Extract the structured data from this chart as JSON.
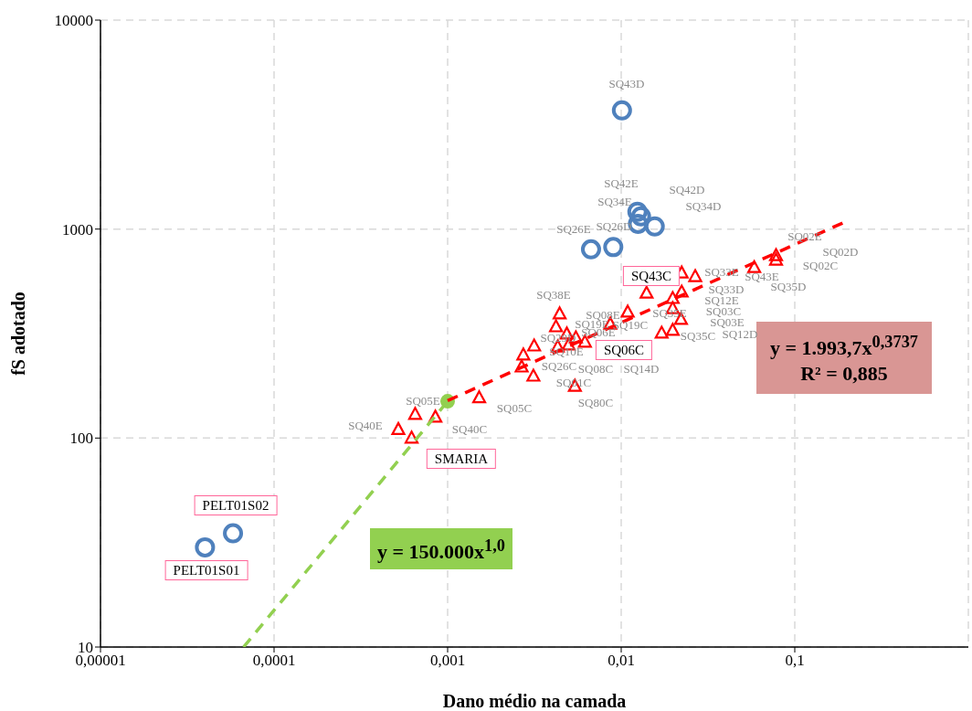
{
  "chart_data": {
    "type": "scatter",
    "xlabel": "Dano médio na camada",
    "ylabel": "fS adotado",
    "log": "xy",
    "grid": true,
    "xlim": [
      1e-05,
      1
    ],
    "ylim": [
      10,
      10000
    ],
    "xticks": [
      {
        "value": 1e-05,
        "label": "0,00001"
      },
      {
        "value": 0.0001,
        "label": "0,0001"
      },
      {
        "value": 0.001,
        "label": "0,001"
      },
      {
        "value": 0.01,
        "label": "0,01"
      },
      {
        "value": 0.1,
        "label": "0,1"
      }
    ],
    "yticks": [
      10,
      100,
      1000,
      10000
    ],
    "series": [
      {
        "type": "scatter",
        "marker": "circle",
        "color": "#4f81bd",
        "x": [
          4e-05,
          5.8e-05,
          0.0067,
          0.009,
          0.0124,
          0.0125,
          0.013,
          0.0156,
          0.0101
        ],
        "values": [
          30,
          35,
          800,
          820,
          1210,
          1060,
          1150,
          1030,
          3700
        ]
      },
      {
        "type": "scatter",
        "marker": "triangle",
        "color": "#ff0000",
        "x": [
          0.00052,
          0.00062,
          0.00065,
          0.00085,
          0.00152,
          0.00267,
          0.00312,
          0.00273,
          0.00315,
          0.00442,
          0.00421,
          0.00486,
          0.00431,
          0.00498,
          0.00548,
          0.00618,
          0.00865,
          0.00541,
          0.0109,
          0.014,
          0.0171,
          0.0198,
          0.0221,
          0.0198,
          0.0198,
          0.0223,
          0.0223,
          0.0267,
          0.0584,
          0.078,
          0.078
        ],
        "values": [
          110,
          100,
          130,
          126,
          156,
          219,
          198,
          250,
          276,
          393,
          341,
          315,
          273,
          279,
          302,
          288,
          351,
          177,
          401,
          494,
          318,
          328,
          370,
          417,
          466,
          500,
          617,
          593,
          655,
          747,
          711
        ]
      },
      {
        "type": "scatter",
        "marker": "circle",
        "color": "#92d050",
        "x": [
          0.001
        ],
        "values": [
          150
        ]
      },
      {
        "type": "line",
        "line_style": "dashed",
        "marker": "none",
        "color": "#ff0000",
        "x": [
          0.001,
          0.2
        ],
        "values": [
          151,
          1093
        ]
      },
      {
        "type": "line",
        "line_style": "dashed",
        "marker": "none",
        "color": "#92d050",
        "x": [
          6.67e-05,
          0.001
        ],
        "values": [
          10,
          150
        ]
      }
    ],
    "annotations": [
      "y = 1.993,7x$^{0,3737}$",
      "R² = 0,885",
      "y = 150.000x$^{1,0}$",
      "PELT01S02",
      "PELT01S01",
      "SQ43C",
      "SQ06C",
      "SMARIA",
      "SQ43D",
      "SQ42E",
      "SQ42D",
      "SQ34E",
      "SQ34D",
      "SQ26E",
      "SQ26D",
      "SQ02E",
      "SQ02D",
      "SQ02C",
      "SQ35D",
      "SQ33E",
      "SQ43E",
      "SQ33D",
      "SQ12E",
      "SQ03C",
      "SQ03E",
      "SQ12D",
      "SQ35C",
      "SQ35E",
      "SQ19C",
      "SQ38E",
      "SQ08E",
      "SQ19E",
      "SQ06E",
      "SQ29D",
      "SQ10E",
      "SQ26C",
      "SQ08C",
      "SQ14D",
      "SQ01C",
      "SQ80C",
      "SQ05E",
      "SQ05C",
      "SQ40E",
      "SQ40C"
    ]
  }
}
